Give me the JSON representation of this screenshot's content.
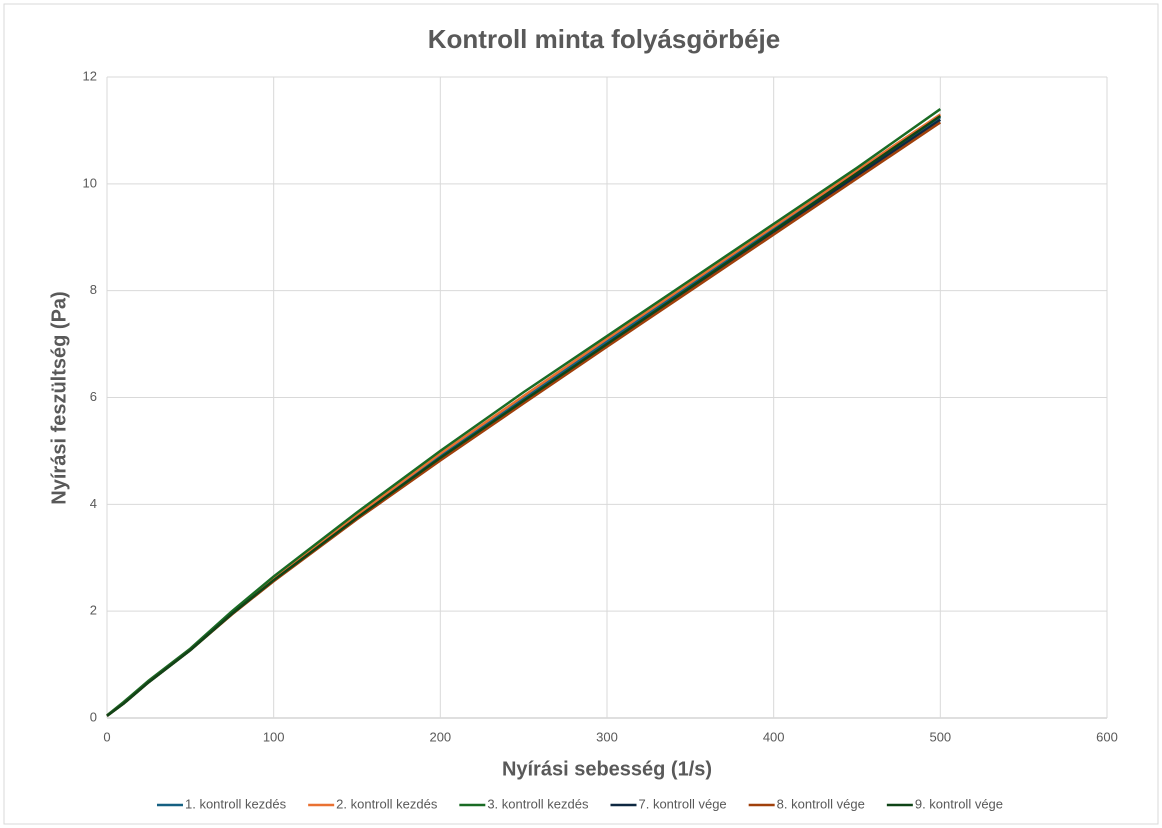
{
  "chart_data": {
    "type": "line",
    "title": "Kontroll minta folyásgörbéje",
    "x_label": "Nyírási sebesség (1/s)",
    "y_label": "Nyírási feszültség (Pa)",
    "x": [
      0,
      10,
      25,
      50,
      75,
      100,
      150,
      200,
      250,
      300,
      350,
      400,
      450,
      500
    ],
    "series": [
      {
        "name": "1. kontroll kezdés",
        "color": "#156082",
        "values": [
          0.04,
          0.28,
          0.68,
          1.28,
          1.97,
          2.6,
          3.78,
          4.9,
          5.98,
          7.05,
          8.1,
          9.15,
          10.2,
          11.25
        ]
      },
      {
        "name": "2. kontroll kezdés",
        "color": "#e97132",
        "values": [
          0.04,
          0.28,
          0.68,
          1.29,
          1.98,
          2.62,
          3.8,
          4.95,
          6.03,
          7.1,
          8.15,
          9.2,
          10.25,
          11.3
        ]
      },
      {
        "name": "3. kontroll kezdés",
        "color": "#196b24",
        "values": [
          0.05,
          0.3,
          0.7,
          1.3,
          2.0,
          2.65,
          3.85,
          5.0,
          6.1,
          7.15,
          8.2,
          9.25,
          10.3,
          11.4
        ]
      },
      {
        "name": "7. kontroll vége",
        "color": "#0e2841",
        "values": [
          0.04,
          0.27,
          0.67,
          1.27,
          1.95,
          2.57,
          3.74,
          4.85,
          5.92,
          6.98,
          8.04,
          9.1,
          10.15,
          11.2
        ]
      },
      {
        "name": "8. kontroll vége",
        "color": "#a0400b",
        "values": [
          0.04,
          0.27,
          0.67,
          1.27,
          1.94,
          2.56,
          3.72,
          4.82,
          5.89,
          6.95,
          8.0,
          9.05,
          10.1,
          11.15
        ]
      },
      {
        "name": "9. kontroll vége",
        "color": "#0f4417",
        "values": [
          0.04,
          0.27,
          0.67,
          1.27,
          1.95,
          2.58,
          3.75,
          4.87,
          5.94,
          7.0,
          8.06,
          9.12,
          10.2,
          11.27
        ]
      }
    ],
    "xlim": [
      0,
      600
    ],
    "xticks": [
      0,
      100,
      200,
      300,
      400,
      500,
      600
    ],
    "ylim": [
      0,
      12
    ],
    "yticks": [
      0,
      2,
      4,
      6,
      8,
      10,
      12
    ],
    "grid": true,
    "legend": "bottom"
  }
}
